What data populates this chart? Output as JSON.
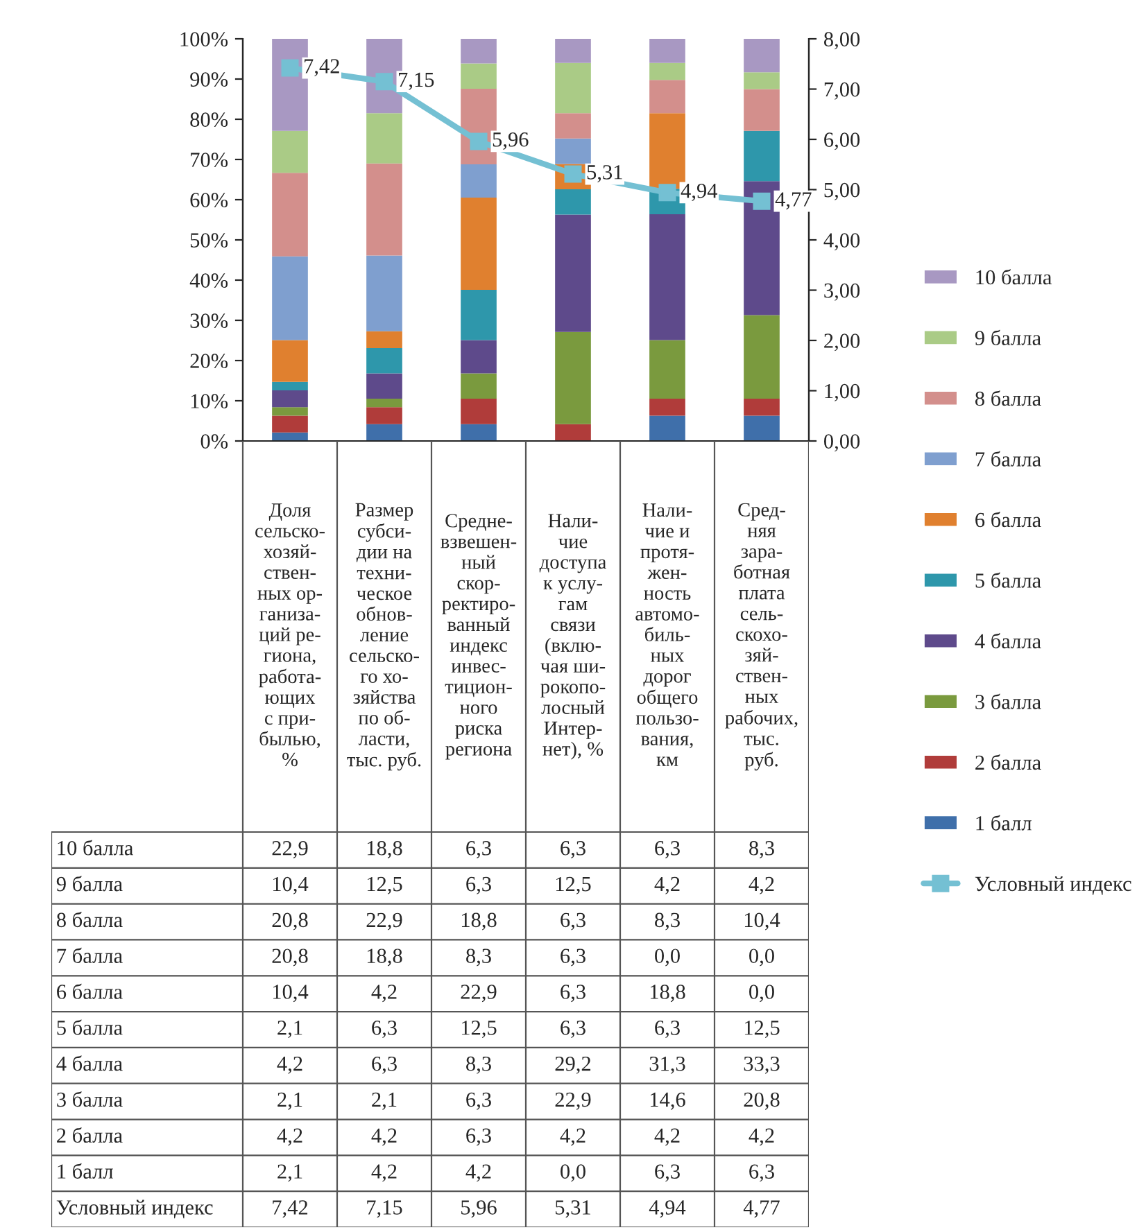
{
  "chart_data": {
    "type": "bar",
    "stacked": true,
    "categories": [
      "Доля\nсельско-\nхозяй-\nствен-\nных ор-\nганиза-\nций ре-\nгиона,\nработа-\nющих\nс при-\nбылью,\n%",
      "Размер\nсубси-\nдии на\nтехни-\nческое\nобнов-\nление\nсельско-\nго хо-\nзяйства\nпо об-\nласти,\nтыс. руб.",
      "Средне-\nвзвешен-\nный\nскор-\nректиро-\nванный\nиндекс\nинвес-\nтицион-\nного\nриска\nрегиона",
      "Нали-\nчие\nдоступа\nк услу-\nгам\nсвязи\n(вклю-\nчая ши-\nрокопо-\nлосный\nИнтер-\nнет), %",
      "Нали-\nчие и\nпротя-\nжен-\nность\nавтомо-\nбиль-\nных\nдорог\nобщего\nпользо-\nвания,\nкм",
      "Сред-\nняя\nзара-\nботная\nплата\nсель-\nскохо-\nзяй-\nствен-\nных\nрабочих,\nтыс.\nруб."
    ],
    "series": [
      {
        "name": "1 балл",
        "color": "#3f6faa",
        "values": [
          2.1,
          4.2,
          4.2,
          0.0,
          6.3,
          6.3
        ],
        "value_labels": [
          "2,1",
          "4,2",
          "4,2",
          "0,0",
          "6,3",
          "6,3"
        ]
      },
      {
        "name": "2 балла",
        "color": "#b03c3a",
        "values": [
          4.2,
          4.2,
          6.3,
          4.2,
          4.2,
          4.2
        ],
        "value_labels": [
          "4,2",
          "4,2",
          "6,3",
          "4,2",
          "4,2",
          "4,2"
        ]
      },
      {
        "name": "3 балла",
        "color": "#7a9a3e",
        "values": [
          2.1,
          2.1,
          6.3,
          22.9,
          14.6,
          20.8
        ],
        "value_labels": [
          "2,1",
          "2,1",
          "6,3",
          "22,9",
          "14,6",
          "20,8"
        ]
      },
      {
        "name": "4 балла",
        "color": "#5e4a8b",
        "values": [
          4.2,
          6.3,
          8.3,
          29.2,
          31.3,
          33.3
        ],
        "value_labels": [
          "4,2",
          "6,3",
          "8,3",
          "29,2",
          "31,3",
          "33,3"
        ]
      },
      {
        "name": "5 балла",
        "color": "#2e97ab",
        "values": [
          2.1,
          6.3,
          12.5,
          6.3,
          6.3,
          12.5
        ],
        "value_labels": [
          "2,1",
          "6,3",
          "12,5",
          "6,3",
          "6,3",
          "12,5"
        ]
      },
      {
        "name": "6 балла",
        "color": "#e0802f",
        "values": [
          10.4,
          4.2,
          22.9,
          6.3,
          18.8,
          0.0
        ],
        "value_labels": [
          "10,4",
          "4,2",
          "22,9",
          "6,3",
          "18,8",
          "0,0"
        ]
      },
      {
        "name": "7 балла",
        "color": "#7f9fcf",
        "values": [
          20.8,
          18.8,
          8.3,
          6.3,
          0.0,
          0.0
        ],
        "value_labels": [
          "20,8",
          "18,8",
          "8,3",
          "6,3",
          "0,0",
          "0,0"
        ]
      },
      {
        "name": "8 балла",
        "color": "#d38f8c",
        "values": [
          20.8,
          22.9,
          18.8,
          6.3,
          8.3,
          10.4
        ],
        "value_labels": [
          "20,8",
          "22,9",
          "18,8",
          "6,3",
          "8,3",
          "10,4"
        ]
      },
      {
        "name": "9 балла",
        "color": "#aacb86",
        "values": [
          10.4,
          12.5,
          6.3,
          12.5,
          4.2,
          4.2
        ],
        "value_labels": [
          "10,4",
          "12,5",
          "6,3",
          "12,5",
          "4,2",
          "4,2"
        ]
      },
      {
        "name": "10 балла",
        "color": "#a898c2",
        "values": [
          22.9,
          18.8,
          6.3,
          6.3,
          6.3,
          8.3
        ],
        "value_labels": [
          "22,9",
          "18,8",
          "6,3",
          "6,3",
          "6,3",
          "8,3"
        ]
      },
      {
        "name": "Условный индекс",
        "type": "line",
        "axis": "y2",
        "marker": "square",
        "color": "#74c0d3",
        "values": [
          7.42,
          7.15,
          5.96,
          5.31,
          4.94,
          4.77
        ],
        "value_labels": [
          "7,42",
          "7,15",
          "5,96",
          "5,31",
          "4,94",
          "4,77"
        ]
      }
    ],
    "ylim": [
      0,
      100
    ],
    "yticks": [
      {
        "value": 0,
        "label": "0%"
      },
      {
        "value": 10,
        "label": "10%"
      },
      {
        "value": 20,
        "label": "20%"
      },
      {
        "value": 30,
        "label": "30%"
      },
      {
        "value": 40,
        "label": "40%"
      },
      {
        "value": 50,
        "label": "50%"
      },
      {
        "value": 60,
        "label": "60%"
      },
      {
        "value": 70,
        "label": "70%"
      },
      {
        "value": 80,
        "label": "80%"
      },
      {
        "value": 90,
        "label": "90%"
      },
      {
        "value": 100,
        "label": "100%"
      }
    ],
    "y2lim": [
      0,
      8
    ],
    "y2ticks": [
      {
        "value": 0,
        "label": "0,00"
      },
      {
        "value": 1,
        "label": "1,00"
      },
      {
        "value": 2,
        "label": "2,00"
      },
      {
        "value": 3,
        "label": "3,00"
      },
      {
        "value": 4,
        "label": "4,00"
      },
      {
        "value": 5,
        "label": "5,00"
      },
      {
        "value": 6,
        "label": "6,00"
      },
      {
        "value": 7,
        "label": "7,00"
      },
      {
        "value": 8,
        "label": "8,00"
      }
    ],
    "legend": "right",
    "grid": false
  }
}
